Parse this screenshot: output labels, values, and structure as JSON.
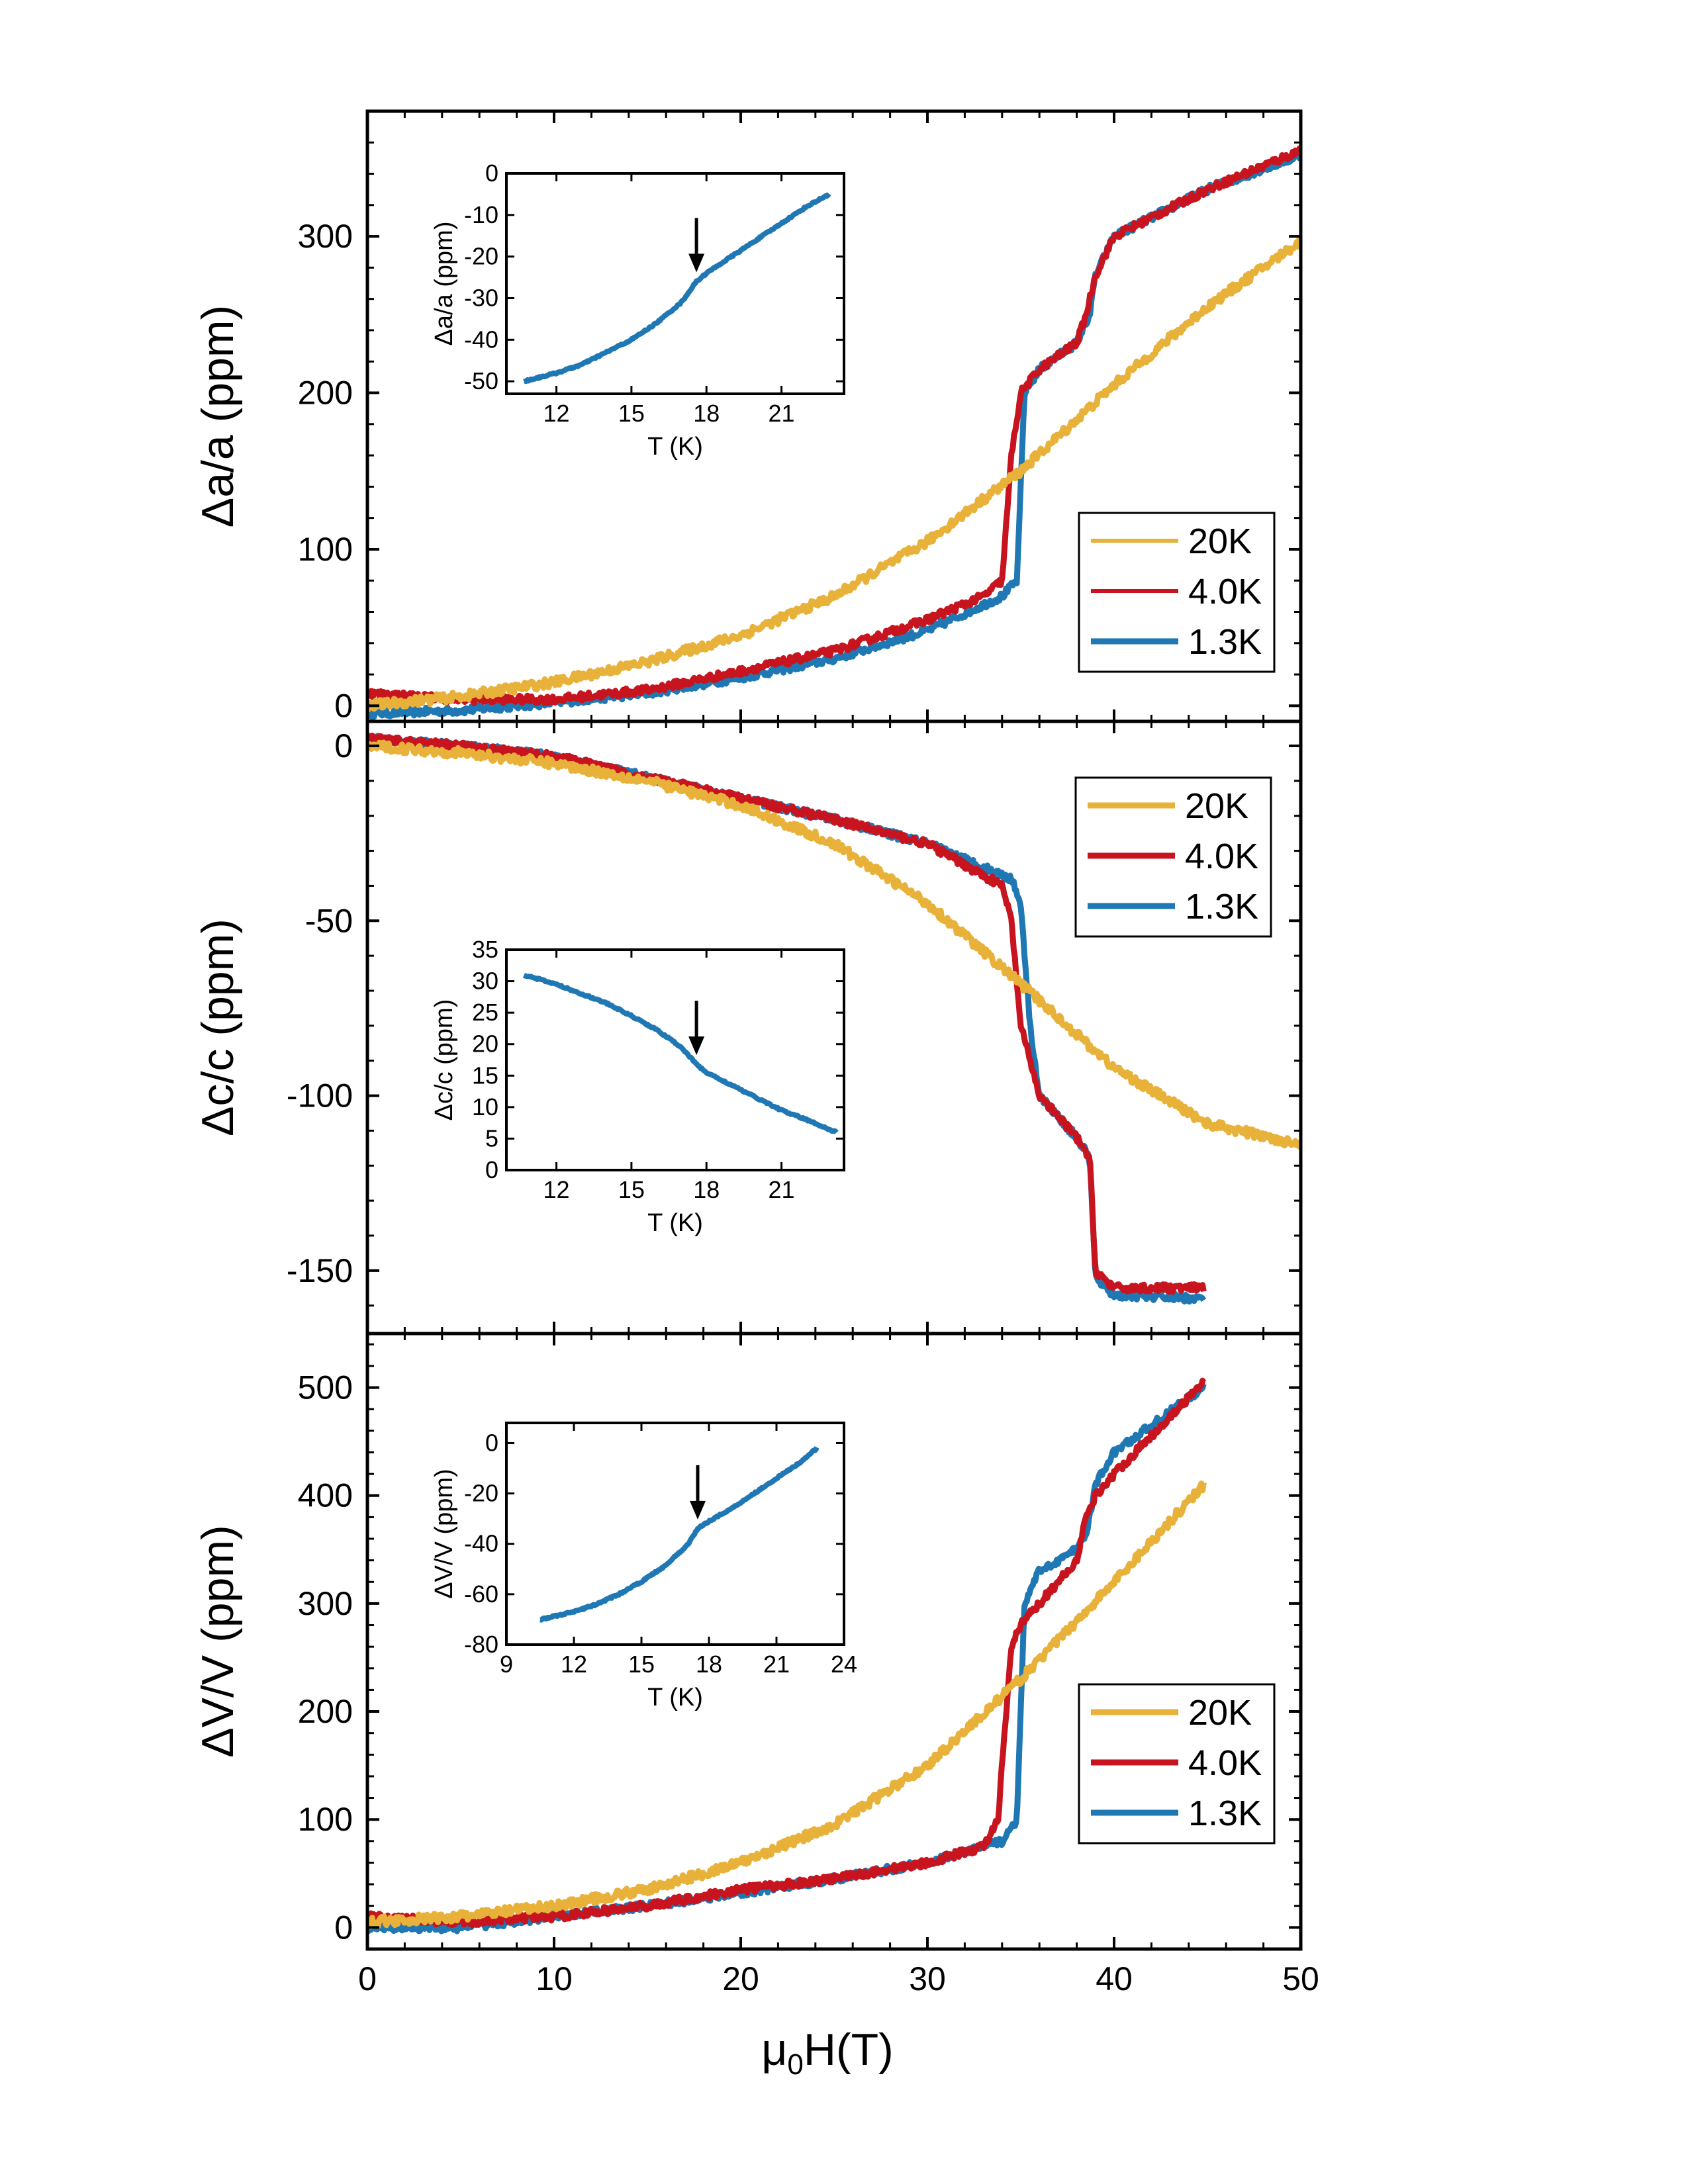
{
  "colors": {
    "20K": "#e8b23a",
    "4.0K": "#c8141e",
    "1.3K": "#1f78b4",
    "axis": "#000000"
  },
  "figure": {
    "xlabel_mu": "μ",
    "xlabel_sub": "0",
    "xlabel_rest": "H(T)"
  },
  "chart_data": [
    {
      "type": "line",
      "panel": "top",
      "ylabel": "Δa/a (ppm)",
      "xlabel": "μ0H(T)",
      "xlim": [
        0,
        50
      ],
      "ylim": [
        -10,
        380
      ],
      "yticks": [
        0,
        100,
        200,
        300
      ],
      "yticklabels": [
        "0",
        "100",
        "200",
        "300"
      ],
      "xticks": [
        0,
        10,
        20,
        30,
        40,
        50
      ],
      "xticklabels": [
        "0",
        "10",
        "20",
        "30",
        "40",
        "50"
      ],
      "legend": {
        "position": "lower-right",
        "entries": [
          "20K",
          "4.0K",
          "1.3K"
        ]
      },
      "series": [
        {
          "name": "20K",
          "x": [
            0,
            5,
            10,
            15,
            20,
            25,
            30,
            35,
            40,
            45,
            50
          ],
          "y": [
            0,
            6,
            15,
            28,
            45,
            70,
            105,
            150,
            205,
            255,
            297
          ]
        },
        {
          "name": "4.0K",
          "x": [
            0,
            5,
            10,
            15,
            20,
            25,
            30,
            33,
            34,
            34.5,
            35,
            36,
            38,
            38.5,
            39,
            40,
            45,
            50
          ],
          "y": [
            8,
            4,
            4,
            10,
            22,
            35,
            55,
            70,
            80,
            160,
            200,
            215,
            232,
            250,
            275,
            300,
            330,
            355
          ]
        },
        {
          "name": "1.3K",
          "x": [
            0,
            5,
            10,
            15,
            20,
            25,
            30,
            34,
            34.8,
            35.2,
            36,
            38,
            38.7,
            39,
            40,
            45,
            50
          ],
          "y": [
            -5,
            -3,
            2,
            8,
            18,
            30,
            48,
            70,
            80,
            200,
            215,
            232,
            250,
            275,
            300,
            330,
            352
          ]
        }
      ],
      "inset": {
        "xlabel": "T (K)",
        "ylabel": "Δa/a (ppm)",
        "xlim": [
          10,
          23.5
        ],
        "ylim": [
          -53,
          0
        ],
        "xticks": [
          12,
          15,
          18,
          21
        ],
        "xticklabels": [
          "12",
          "15",
          "18",
          "21"
        ],
        "yticks": [
          0,
          -10,
          -20,
          -30,
          -40,
          -50
        ],
        "yticklabels": [
          "0",
          "-10",
          "-20",
          "-30",
          "-40",
          "-50"
        ],
        "arrow_at_T": 17.6,
        "series": [
          {
            "name": "1.3K",
            "x": [
              10.7,
              12,
              13,
              14,
              15,
              16,
              17,
              17.6,
              18,
              19,
              20,
              21,
              22,
              22.9
            ],
            "y": [
              -50,
              -48,
              -46,
              -43,
              -40,
              -36,
              -31,
              -26,
              -24,
              -20,
              -16,
              -12,
              -8,
              -5
            ]
          }
        ]
      }
    },
    {
      "type": "line",
      "panel": "middle",
      "ylabel": "Δc/c (ppm)",
      "xlabel": "μ0H(T)",
      "xlim": [
        0,
        50
      ],
      "ylim": [
        -168,
        7
      ],
      "yticks": [
        0,
        -50,
        -100,
        -150
      ],
      "yticklabels": [
        "0",
        "-50",
        "-100",
        "-150"
      ],
      "xticks": [
        0,
        10,
        20,
        30,
        40,
        50
      ],
      "xticklabels": [
        "0",
        "10",
        "20",
        "30",
        "40",
        "50"
      ],
      "legend": {
        "position": "upper-right",
        "entries": [
          "20K",
          "4.0K",
          "1.3K"
        ]
      },
      "series": [
        {
          "name": "20K",
          "x": [
            0,
            5,
            10,
            15,
            20,
            25,
            30,
            35,
            40,
            45,
            50
          ],
          "y": [
            0,
            -2,
            -5,
            -10,
            -17,
            -28,
            -45,
            -68,
            -92,
            -108,
            -114
          ]
        },
        {
          "name": "4.0K",
          "x": [
            0,
            5,
            10,
            15,
            20,
            25,
            30,
            34,
            34.5,
            35,
            36,
            38,
            38.7,
            39,
            40,
            44.8
          ],
          "y": [
            2,
            0,
            -3,
            -9,
            -15,
            -21,
            -28,
            -40,
            -50,
            -80,
            -100,
            -112,
            -118,
            -150,
            -155,
            -155
          ]
        },
        {
          "name": "1.3K",
          "x": [
            0,
            5,
            10,
            15,
            20,
            25,
            30,
            34.5,
            35,
            35.5,
            36,
            38,
            38.7,
            39,
            40,
            44.8
          ],
          "y": [
            2,
            0,
            -3,
            -9,
            -15,
            -21,
            -28,
            -38,
            -45,
            -80,
            -100,
            -112,
            -118,
            -152,
            -157,
            -158
          ]
        }
      ],
      "inset": {
        "xlabel": "T (K)",
        "ylabel": "Δc/c (ppm)",
        "xlim": [
          10,
          23.5
        ],
        "ylim": [
          0,
          35
        ],
        "xticks": [
          12,
          15,
          18,
          21
        ],
        "xticklabels": [
          "12",
          "15",
          "18",
          "21"
        ],
        "yticks": [
          0,
          5,
          10,
          15,
          20,
          25,
          30,
          35
        ],
        "yticklabels": [
          "0",
          "5",
          "10",
          "15",
          "20",
          "25",
          "30",
          "35"
        ],
        "arrow_at_T": 17.6,
        "series": [
          {
            "name": "1.3K",
            "x": [
              10.7,
              12,
              13,
              14,
              15,
              16,
              17,
              17.6,
              18,
              19,
              20,
              21,
              22,
              23.2
            ],
            "y": [
              31,
              29.5,
              28,
              26.5,
              24.5,
              22.3,
              19.5,
              16.8,
              15.5,
              13.5,
              11.5,
              9.5,
              8,
              6
            ]
          }
        ]
      }
    },
    {
      "type": "line",
      "panel": "bottom",
      "ylabel": "ΔV/V (ppm)",
      "xlabel": "μ0H(T)",
      "xlim": [
        0,
        50
      ],
      "ylim": [
        -20,
        550
      ],
      "yticks": [
        0,
        100,
        200,
        300,
        400,
        500
      ],
      "yticklabels": [
        "0",
        "100",
        "200",
        "300",
        "400",
        "500"
      ],
      "xticks": [
        0,
        10,
        20,
        30,
        40,
        50
      ],
      "xticklabels": [
        "0",
        "10",
        "20",
        "30",
        "40",
        "50"
      ],
      "legend": {
        "position": "lower-right",
        "entries": [
          "20K",
          "4.0K",
          "1.3K"
        ]
      },
      "series": [
        {
          "name": "20K",
          "x": [
            0,
            5,
            10,
            15,
            20,
            25,
            30,
            35,
            40,
            44.8
          ],
          "y": [
            5,
            10,
            20,
            35,
            60,
            95,
            150,
            230,
            320,
            410
          ]
        },
        {
          "name": "4.0K",
          "x": [
            0,
            5,
            10,
            15,
            20,
            25,
            30,
            33,
            33.8,
            34,
            34.5,
            35,
            36,
            38,
            38.5,
            39,
            40,
            44.8
          ],
          "y": [
            10,
            5,
            10,
            20,
            35,
            45,
            60,
            75,
            100,
            150,
            260,
            280,
            300,
            340,
            380,
            400,
            420,
            505
          ]
        },
        {
          "name": "1.3K",
          "x": [
            0,
            5,
            10,
            15,
            20,
            25,
            30,
            34,
            34.8,
            35.2,
            36,
            38,
            38.6,
            39,
            40,
            44.8
          ],
          "y": [
            0,
            0,
            10,
            20,
            32,
            45,
            60,
            80,
            100,
            300,
            330,
            350,
            370,
            410,
            440,
            500
          ]
        }
      ],
      "inset": {
        "xlabel": "T (K)",
        "ylabel": "ΔV/V (ppm)",
        "xlim": [
          9,
          24
        ],
        "ylim": [
          -80,
          8
        ],
        "xticks": [
          9,
          12,
          15,
          18,
          21,
          24
        ],
        "xticklabels": [
          "9",
          "12",
          "15",
          "18",
          "21",
          "24"
        ],
        "yticks": [
          0,
          -20,
          -40,
          -60,
          -80
        ],
        "yticklabels": [
          "0",
          "-20",
          "-40",
          "-60",
          "-80"
        ],
        "arrow_at_T": 17.5,
        "series": [
          {
            "name": "1.3K",
            "x": [
              10.5,
              12,
              13,
              14,
              15,
              16,
              17,
              17.5,
              18,
              19,
              20,
              21,
              22,
              22.8
            ],
            "y": [
              -70,
              -67,
              -64,
              -60,
              -55,
              -49,
              -41,
              -34,
              -31,
              -26,
              -20,
              -14,
              -8,
              -2
            ]
          }
        ]
      }
    }
  ]
}
